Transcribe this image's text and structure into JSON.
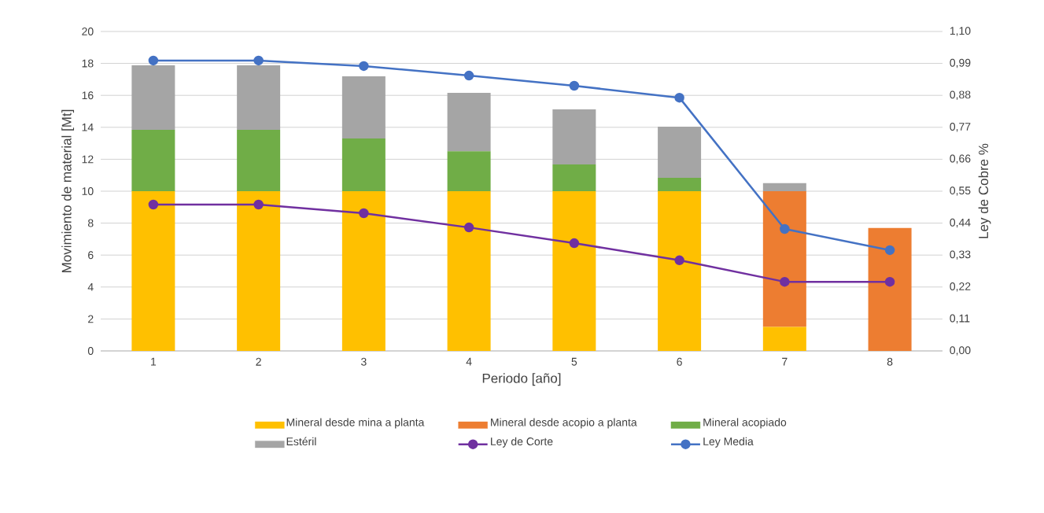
{
  "chart_data": {
    "type": "bar",
    "stacked": true,
    "xlabel": "Periodo [año]",
    "ylabel": "Movimiento de material [Mt]",
    "y2label": "Ley de Cobre %",
    "categories": [
      "1",
      "2",
      "3",
      "4",
      "5",
      "6",
      "7",
      "8"
    ],
    "ylim": [
      0,
      20
    ],
    "yticks": [
      0,
      2,
      4,
      6,
      8,
      10,
      12,
      14,
      16,
      18,
      20
    ],
    "y2lim": [
      0,
      1.1
    ],
    "y2ticks": [
      {
        "value": 0,
        "label": "0,00"
      },
      {
        "value": 0.11,
        "label": "0,11"
      },
      {
        "value": 0.22,
        "label": "0,22"
      },
      {
        "value": 0.33,
        "label": "0,33"
      },
      {
        "value": 0.44,
        "label": "0,44"
      },
      {
        "value": 0.55,
        "label": "0,55"
      },
      {
        "value": 0.66,
        "label": "0,66"
      },
      {
        "value": 0.77,
        "label": "0,77"
      },
      {
        "value": 0.88,
        "label": "0,88"
      },
      {
        "value": 0.99,
        "label": "0,99"
      },
      {
        "value": 1.1,
        "label": "1,10"
      }
    ],
    "grid": "y",
    "legend": "bottom",
    "marker": "circle",
    "series": [
      {
        "name": "Mineral desde mina a planta",
        "color": "#ffc000",
        "values": [
          10,
          10,
          10,
          10,
          10,
          10,
          1.5,
          0
        ]
      },
      {
        "name": "Mineral desde acopio a planta",
        "color": "#ed7d31",
        "values": [
          0,
          0,
          0,
          0,
          0,
          0,
          8.5,
          7.7
        ]
      },
      {
        "name": "Mineral acopiado",
        "color": "#70ad47",
        "values": [
          3.84,
          3.84,
          3.3,
          2.5,
          1.67,
          0.84,
          0,
          0
        ]
      },
      {
        "name": "Estéril",
        "color": "#a5a5a5",
        "values": [
          4.04,
          4.04,
          3.89,
          3.66,
          3.45,
          3.2,
          0.5,
          0
        ]
      },
      {
        "name": "Ley de Corte",
        "type": "line",
        "axis": "y2",
        "color": "#7030a0",
        "values": [
          0.504,
          0.504,
          0.474,
          0.425,
          0.371,
          0.312,
          0.238,
          0.238
        ]
      },
      {
        "name": "Ley Media",
        "type": "line",
        "axis": "y2",
        "color": "#4472c4",
        "values": [
          1.0,
          1.0,
          0.981,
          0.948,
          0.913,
          0.872,
          0.42,
          0.347
        ]
      }
    ]
  }
}
